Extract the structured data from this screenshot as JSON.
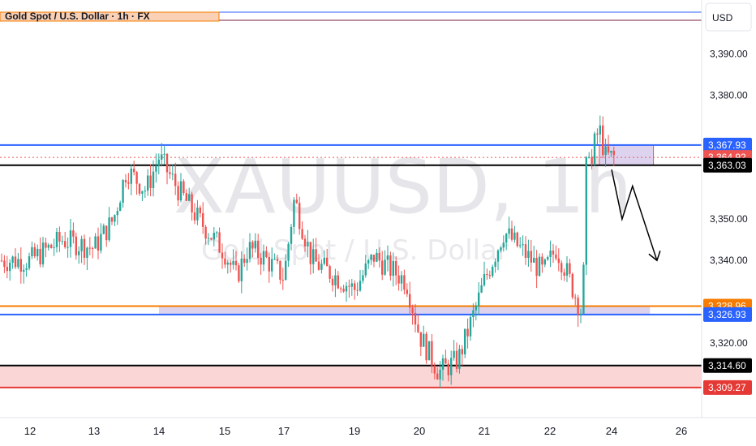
{
  "title": "Gold Spot / U.S. Dollar · 1h · FX",
  "currency_label": "USD",
  "watermark": {
    "symbol": "XAUUSD, 1h",
    "name": "Gold Spot / U.S. Dollar"
  },
  "colors": {
    "up": "#26a69a",
    "down": "#ef5350",
    "blue_line": "#2962ff",
    "orange_line": "#f57c00",
    "red_line": "#e53935",
    "zone_purple": "#d1c4e9",
    "zone_red": "#f8c8c8",
    "black": "#000000"
  },
  "chart_data": {
    "type": "candlestick",
    "x_ticks": [
      "12",
      "13",
      "14",
      "15",
      "17",
      "19",
      "20",
      "21",
      "22",
      "24",
      "26"
    ],
    "y_ticks": [
      "3,390.00",
      "3,380.00",
      "3,350.00",
      "3,340.00",
      "3,320.00"
    ],
    "ylim": [
      3302,
      3403
    ],
    "close_path": [
      [
        "12",
        3340
      ],
      [
        "12.5",
        3345
      ],
      [
        "13",
        3343
      ],
      [
        "13.3",
        3350
      ],
      [
        "13.5",
        3362
      ],
      [
        "13.8",
        3357
      ],
      [
        "14",
        3365
      ],
      [
        "14.3",
        3357
      ],
      [
        "14.6",
        3350
      ],
      [
        "15",
        3342
      ],
      [
        "15.4",
        3336
      ],
      [
        "15.8",
        3343
      ],
      [
        "16.3",
        3341
      ],
      [
        "17",
        3336
      ],
      [
        "17.3",
        3355
      ],
      [
        "17.8",
        3340
      ],
      [
        "18.5",
        3336
      ],
      [
        "19",
        3333
      ],
      [
        "19.3",
        3341
      ],
      [
        "19.8",
        3335
      ],
      [
        "20",
        3322
      ],
      [
        "20.3",
        3313
      ],
      [
        "20.6",
        3316
      ],
      [
        "20.9",
        3330
      ],
      [
        "21",
        3335
      ],
      [
        "21.3",
        3347
      ],
      [
        "21.6",
        3342
      ],
      [
        "21.9",
        3337
      ],
      [
        "22.2",
        3343
      ],
      [
        "22.5",
        3338
      ],
      [
        "22.8",
        3332
      ],
      [
        "23",
        3328
      ],
      [
        "23.4",
        3367
      ],
      [
        "23.6",
        3372
      ],
      [
        "23.8",
        3365
      ]
    ],
    "levels": [
      {
        "value": 3367.93,
        "label": "3,367.93",
        "color": "#2962ff"
      },
      {
        "value": 3364.92,
        "label": "3,364.92",
        "color": "#ef5350"
      },
      {
        "value": 3363.03,
        "label": "3,363.03",
        "color": "#000000"
      },
      {
        "value": 3328.96,
        "label": "3,328.96",
        "color": "#f57c00"
      },
      {
        "value": 3326.93,
        "label": "3,326.93",
        "color": "#2962ff"
      },
      {
        "value": 3314.6,
        "label": "3,314.60",
        "color": "#000000"
      },
      {
        "value": 3309.27,
        "label": "3,309.27",
        "color": "#e53935"
      }
    ],
    "zones": [
      {
        "from": 3363.03,
        "to": 3367.93,
        "x_from": "23.6",
        "x_to": "25.2",
        "color": "#d1c4e9"
      },
      {
        "from": 3326.93,
        "to": 3328.96,
        "x_from": "14",
        "x_to": "25.1",
        "color": "#d1c4e9"
      },
      {
        "from": 3309.27,
        "to": 3314.6,
        "x_from": "11.5",
        "x_to": "27",
        "color": "#f8c8c8"
      }
    ],
    "projection": [
      [
        "24.0",
        3362
      ],
      [
        "24.3",
        3350
      ],
      [
        "24.6",
        3358
      ],
      [
        "25.3",
        3340
      ]
    ]
  }
}
